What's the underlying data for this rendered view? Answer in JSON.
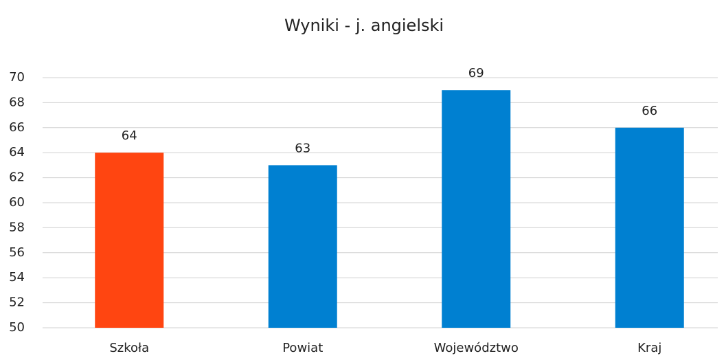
{
  "chart_data": {
    "type": "bar",
    "title": "Wyniki - j. angielski",
    "categories": [
      "Szkoła",
      "Powiat",
      "Województwo",
      "Kraj"
    ],
    "values": [
      64,
      63,
      69,
      66
    ],
    "colors": [
      "#ff4511",
      "#0080d1",
      "#0080d1",
      "#0080d1"
    ],
    "ylim": [
      50,
      70
    ],
    "yticks": [
      50,
      52,
      54,
      56,
      58,
      60,
      62,
      64,
      66,
      68,
      70
    ],
    "grid": true
  }
}
